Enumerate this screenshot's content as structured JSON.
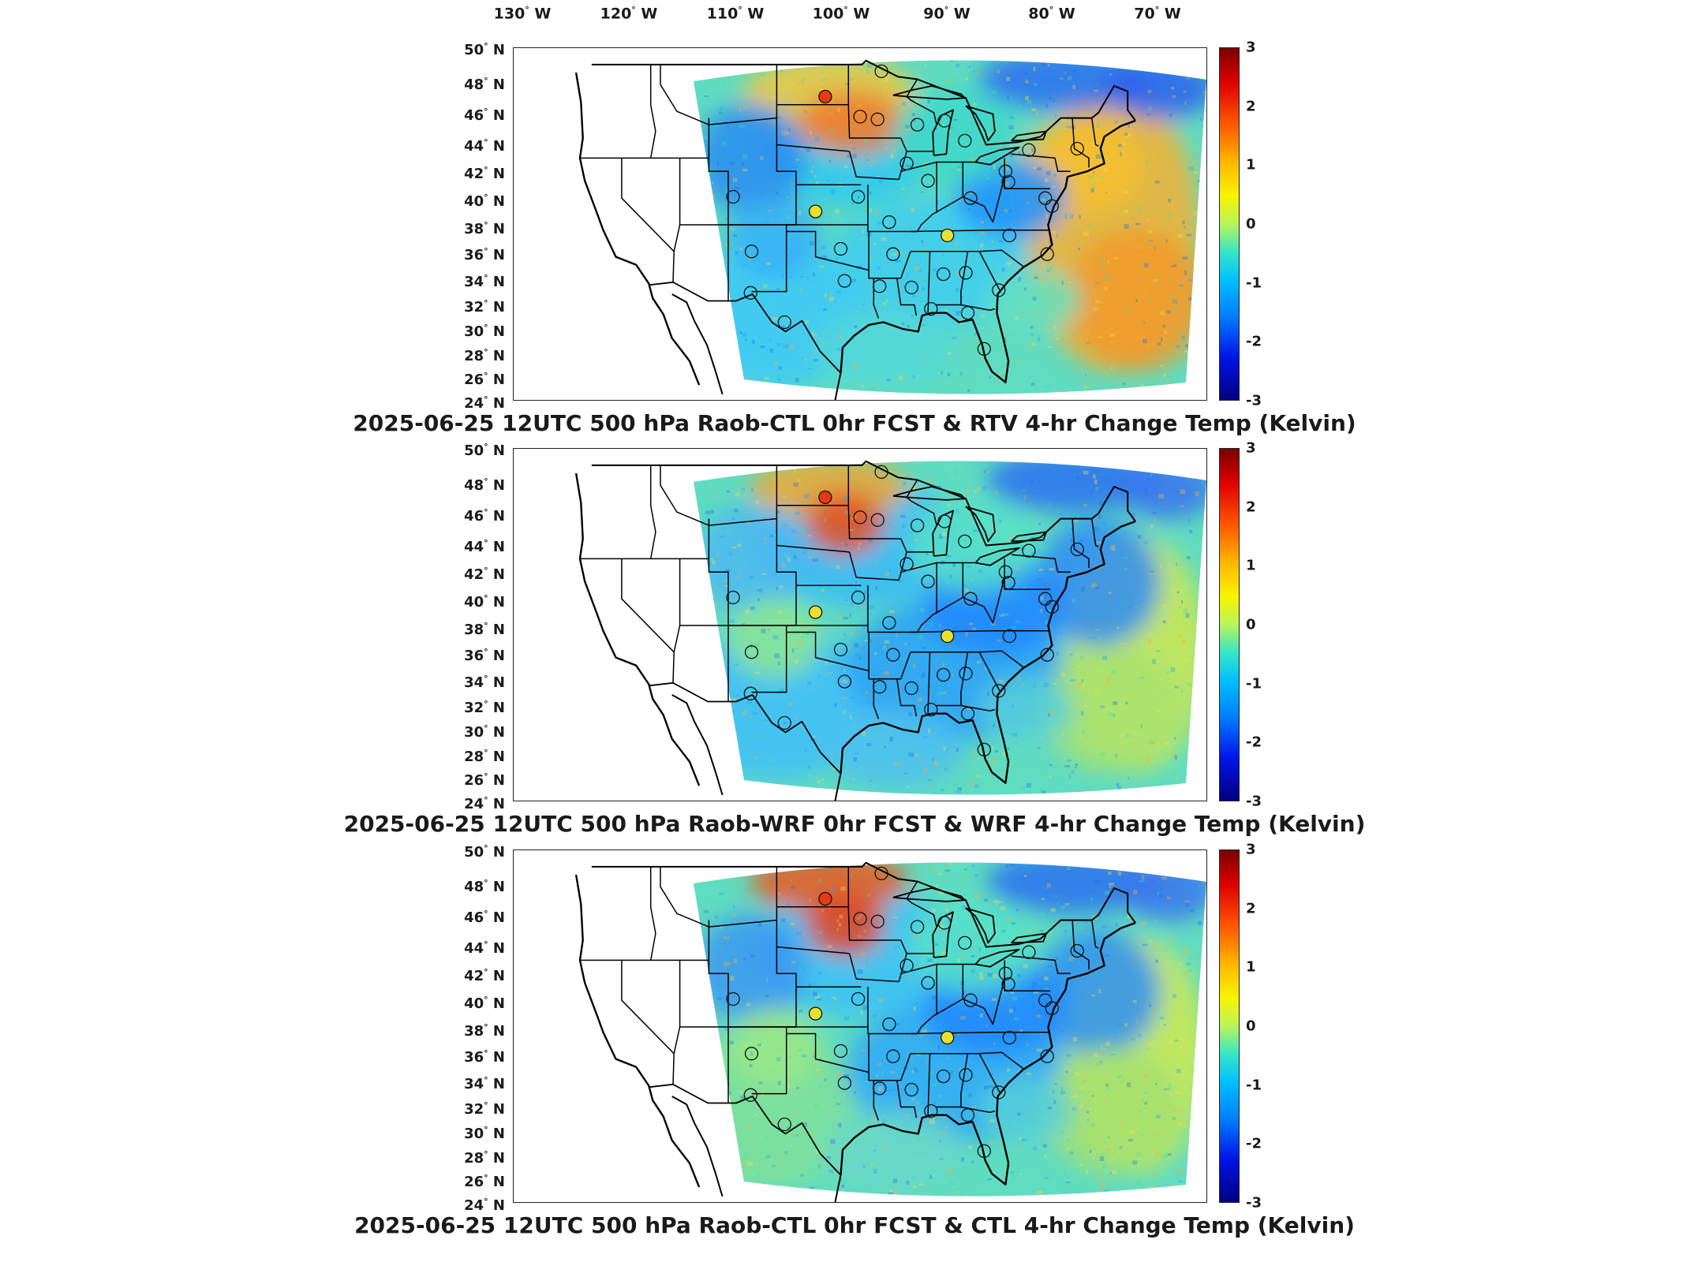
{
  "figure": {
    "lon_labels": [
      "130",
      "120",
      "110",
      "100",
      "90",
      "80",
      "70"
    ],
    "lon_suffix": "W",
    "lat_labels": [
      "50",
      "48",
      "46",
      "44",
      "42",
      "40",
      "38",
      "36",
      "34",
      "32",
      "30",
      "28",
      "26",
      "24"
    ],
    "lat_suffix": "N",
    "colorbar_ticks": [
      "3",
      "2",
      "1",
      "0",
      "-1",
      "-2",
      "-3"
    ],
    "colorbar_range": [
      -3,
      3
    ],
    "colormap": "jet"
  },
  "panels": [
    {
      "title": "2025-06-25 12UTC 500 hPa Raob-CTL 0hr FCST & RTV 4-hr Change Temp (Kelvin)",
      "variant": "rtv"
    },
    {
      "title": "2025-06-25 12UTC 500 hPa Raob-WRF 0hr FCST & WRF 4-hr Change Temp (Kelvin)",
      "variant": "wrf"
    },
    {
      "title": "2025-06-25 12UTC 500 hPa Raob-CTL 0hr FCST & CTL 4-hr Change Temp (Kelvin)",
      "variant": "ctl"
    }
  ],
  "colors": {
    "ocean_warm": "#f3b030",
    "land_base": "#60dcc0",
    "cold": "#1a6ef0",
    "hot": "#e63a10",
    "border": "#000000"
  }
}
